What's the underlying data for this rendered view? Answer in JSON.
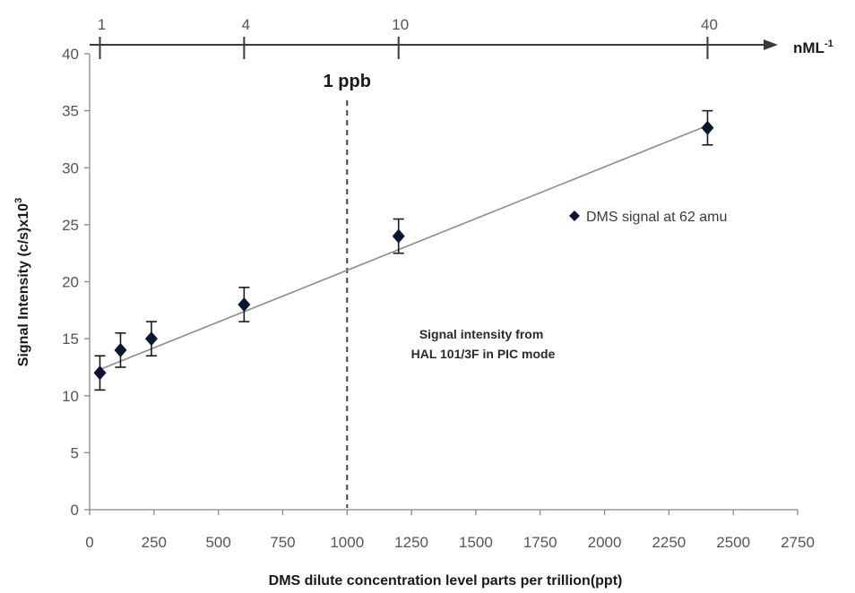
{
  "chart_data": {
    "type": "scatter",
    "title": "",
    "xlabel": "DMS dilute concentration level parts per trillion(ppt)",
    "ylabel": "Signal Intensity (c/s)x10",
    "ylabel_superscript": "3",
    "xlim": [
      0,
      2750
    ],
    "ylim": [
      0,
      40
    ],
    "x_ticks": [
      "0",
      "250",
      "500",
      "750",
      "1000",
      "1250",
      "1500",
      "1750",
      "2000",
      "2250",
      "2500",
      "2750"
    ],
    "y_ticks": [
      "0",
      "5",
      "10",
      "15",
      "20",
      "25",
      "30",
      "35",
      "40"
    ],
    "grid": false,
    "legend_position": "right",
    "series": [
      {
        "name": "DMS signal at 62 amu",
        "marker": "diamond",
        "color": "#0a1530",
        "x": [
          40,
          120,
          240,
          600,
          1200,
          2400
        ],
        "y": [
          12,
          14,
          15,
          18,
          24,
          33.5
        ],
        "error": [
          1.5,
          1.5,
          1.5,
          1.5,
          1.5,
          1.5
        ]
      }
    ],
    "trendline": {
      "x": [
        40,
        2400
      ],
      "y": [
        12.3,
        33.7
      ],
      "color": "#8c8c8c"
    },
    "reference_line": {
      "x": 1000,
      "label": "1 ppb",
      "style": "dashed",
      "color": "#444444"
    },
    "annotation": [
      "Signal intensity from",
      "HAL 101/3F in PIC mode"
    ],
    "top_axis": {
      "unit": "nML",
      "unit_superscript": "-1",
      "ticks": [
        {
          "label": "1",
          "ppt": 40
        },
        {
          "label": "4",
          "ppt": 600
        },
        {
          "label": "10",
          "ppt": 1200
        },
        {
          "label": "40",
          "ppt": 2400
        }
      ]
    }
  }
}
